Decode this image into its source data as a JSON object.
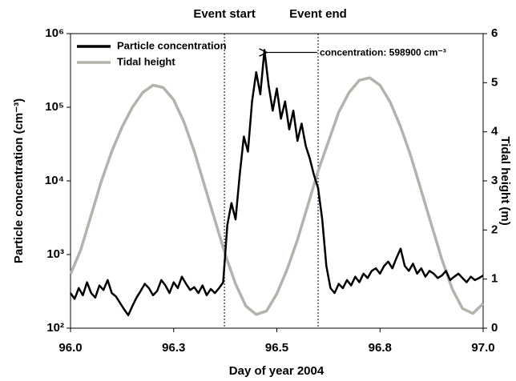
{
  "chart_data": {
    "type": "line",
    "xlabel": "Day of year 2004",
    "ylabel": "Particle concentration (cm⁻³)",
    "y2label": "Tidal height (m)",
    "xlim": [
      96.0,
      97.0
    ],
    "xticks": [
      {
        "value": 96.0,
        "label": "96.0"
      },
      {
        "value": 96.25,
        "label": "96.3"
      },
      {
        "value": 96.5,
        "label": "96.5"
      },
      {
        "value": 96.75,
        "label": "96.8"
      },
      {
        "value": 97.0,
        "label": "97.0"
      }
    ],
    "ylim": [
      100,
      1000000
    ],
    "ylog": true,
    "yticks": [
      {
        "value": 100,
        "label": "10²"
      },
      {
        "value": 1000,
        "label": "10³"
      },
      {
        "value": 10000,
        "label": "10⁴"
      },
      {
        "value": 100000,
        "label": "10⁵"
      },
      {
        "value": 1000000,
        "label": "10⁶"
      }
    ],
    "y2lim": [
      0,
      6
    ],
    "y2ticks": [
      0,
      1,
      2,
      3,
      4,
      5,
      6
    ],
    "legend": "upper left",
    "events": [
      {
        "label": "Event start",
        "x": 96.373
      },
      {
        "label": "Event end",
        "x": 96.6
      }
    ],
    "annotation": {
      "text": "concentration: 598900 cm⁻³",
      "x": 96.47,
      "y": 598900
    },
    "series": [
      {
        "name": "Particle concentration",
        "color": "#000000",
        "axis": "y",
        "x": [
          96.0,
          96.01,
          96.02,
          96.03,
          96.04,
          96.05,
          96.06,
          96.07,
          96.08,
          96.09,
          96.1,
          96.11,
          96.12,
          96.13,
          96.14,
          96.15,
          96.16,
          96.17,
          96.18,
          96.19,
          96.2,
          96.21,
          96.22,
          96.23,
          96.24,
          96.25,
          96.26,
          96.27,
          96.28,
          96.29,
          96.3,
          96.31,
          96.32,
          96.33,
          96.34,
          96.35,
          96.36,
          96.37,
          96.38,
          96.39,
          96.4,
          96.41,
          96.42,
          96.43,
          96.44,
          96.45,
          96.46,
          96.47,
          96.48,
          96.49,
          96.5,
          96.51,
          96.52,
          96.53,
          96.54,
          96.55,
          96.56,
          96.57,
          96.58,
          96.59,
          96.6,
          96.61,
          96.62,
          96.63,
          96.64,
          96.65,
          96.66,
          96.67,
          96.68,
          96.69,
          96.7,
          96.71,
          96.72,
          96.73,
          96.74,
          96.75,
          96.76,
          96.77,
          96.78,
          96.79,
          96.8,
          96.81,
          96.82,
          96.83,
          96.84,
          96.85,
          96.86,
          96.87,
          96.88,
          96.89,
          96.9,
          96.91,
          96.92,
          96.93,
          96.94,
          96.95,
          96.96,
          96.97,
          96.98,
          96.99,
          97.0
        ],
        "values": [
          300,
          250,
          350,
          280,
          420,
          300,
          260,
          380,
          330,
          450,
          300,
          270,
          220,
          180,
          150,
          200,
          260,
          320,
          400,
          350,
          280,
          320,
          450,
          380,
          300,
          420,
          350,
          500,
          400,
          330,
          360,
          300,
          380,
          280,
          340,
          300,
          350,
          420,
          2500,
          5000,
          3000,
          12000,
          40000,
          25000,
          120000,
          300000,
          150000,
          598900,
          200000,
          90000,
          180000,
          70000,
          120000,
          50000,
          90000,
          35000,
          60000,
          30000,
          20000,
          12000,
          8000,
          3000,
          700,
          350,
          300,
          400,
          350,
          450,
          380,
          500,
          420,
          550,
          480,
          600,
          650,
          550,
          700,
          800,
          650,
          900,
          1200,
          700,
          600,
          750,
          550,
          650,
          500,
          600,
          550,
          480,
          520,
          600,
          450,
          500,
          550,
          480,
          420,
          500,
          450,
          480,
          520
        ]
      },
      {
        "name": "Tidal height",
        "color": "#b3b3ab",
        "axis": "y2",
        "x": [
          96.0,
          96.025,
          96.05,
          96.075,
          96.1,
          96.125,
          96.15,
          96.175,
          96.2,
          96.225,
          96.25,
          96.275,
          96.3,
          96.325,
          96.35,
          96.375,
          96.4,
          96.425,
          96.45,
          96.475,
          96.5,
          96.525,
          96.55,
          96.575,
          96.6,
          96.625,
          96.65,
          96.675,
          96.7,
          96.725,
          96.75,
          96.775,
          96.8,
          96.825,
          96.85,
          96.875,
          96.9,
          96.925,
          96.95,
          96.975,
          97.0
        ],
        "values": [
          1.1,
          1.6,
          2.3,
          3.0,
          3.6,
          4.1,
          4.5,
          4.8,
          4.95,
          4.9,
          4.65,
          4.2,
          3.6,
          2.9,
          2.2,
          1.5,
          0.9,
          0.45,
          0.28,
          0.35,
          0.7,
          1.2,
          1.8,
          2.5,
          3.2,
          3.8,
          4.4,
          4.8,
          5.05,
          5.1,
          4.95,
          4.6,
          4.1,
          3.5,
          2.8,
          2.1,
          1.4,
          0.8,
          0.4,
          0.3,
          0.5
        ]
      }
    ]
  }
}
